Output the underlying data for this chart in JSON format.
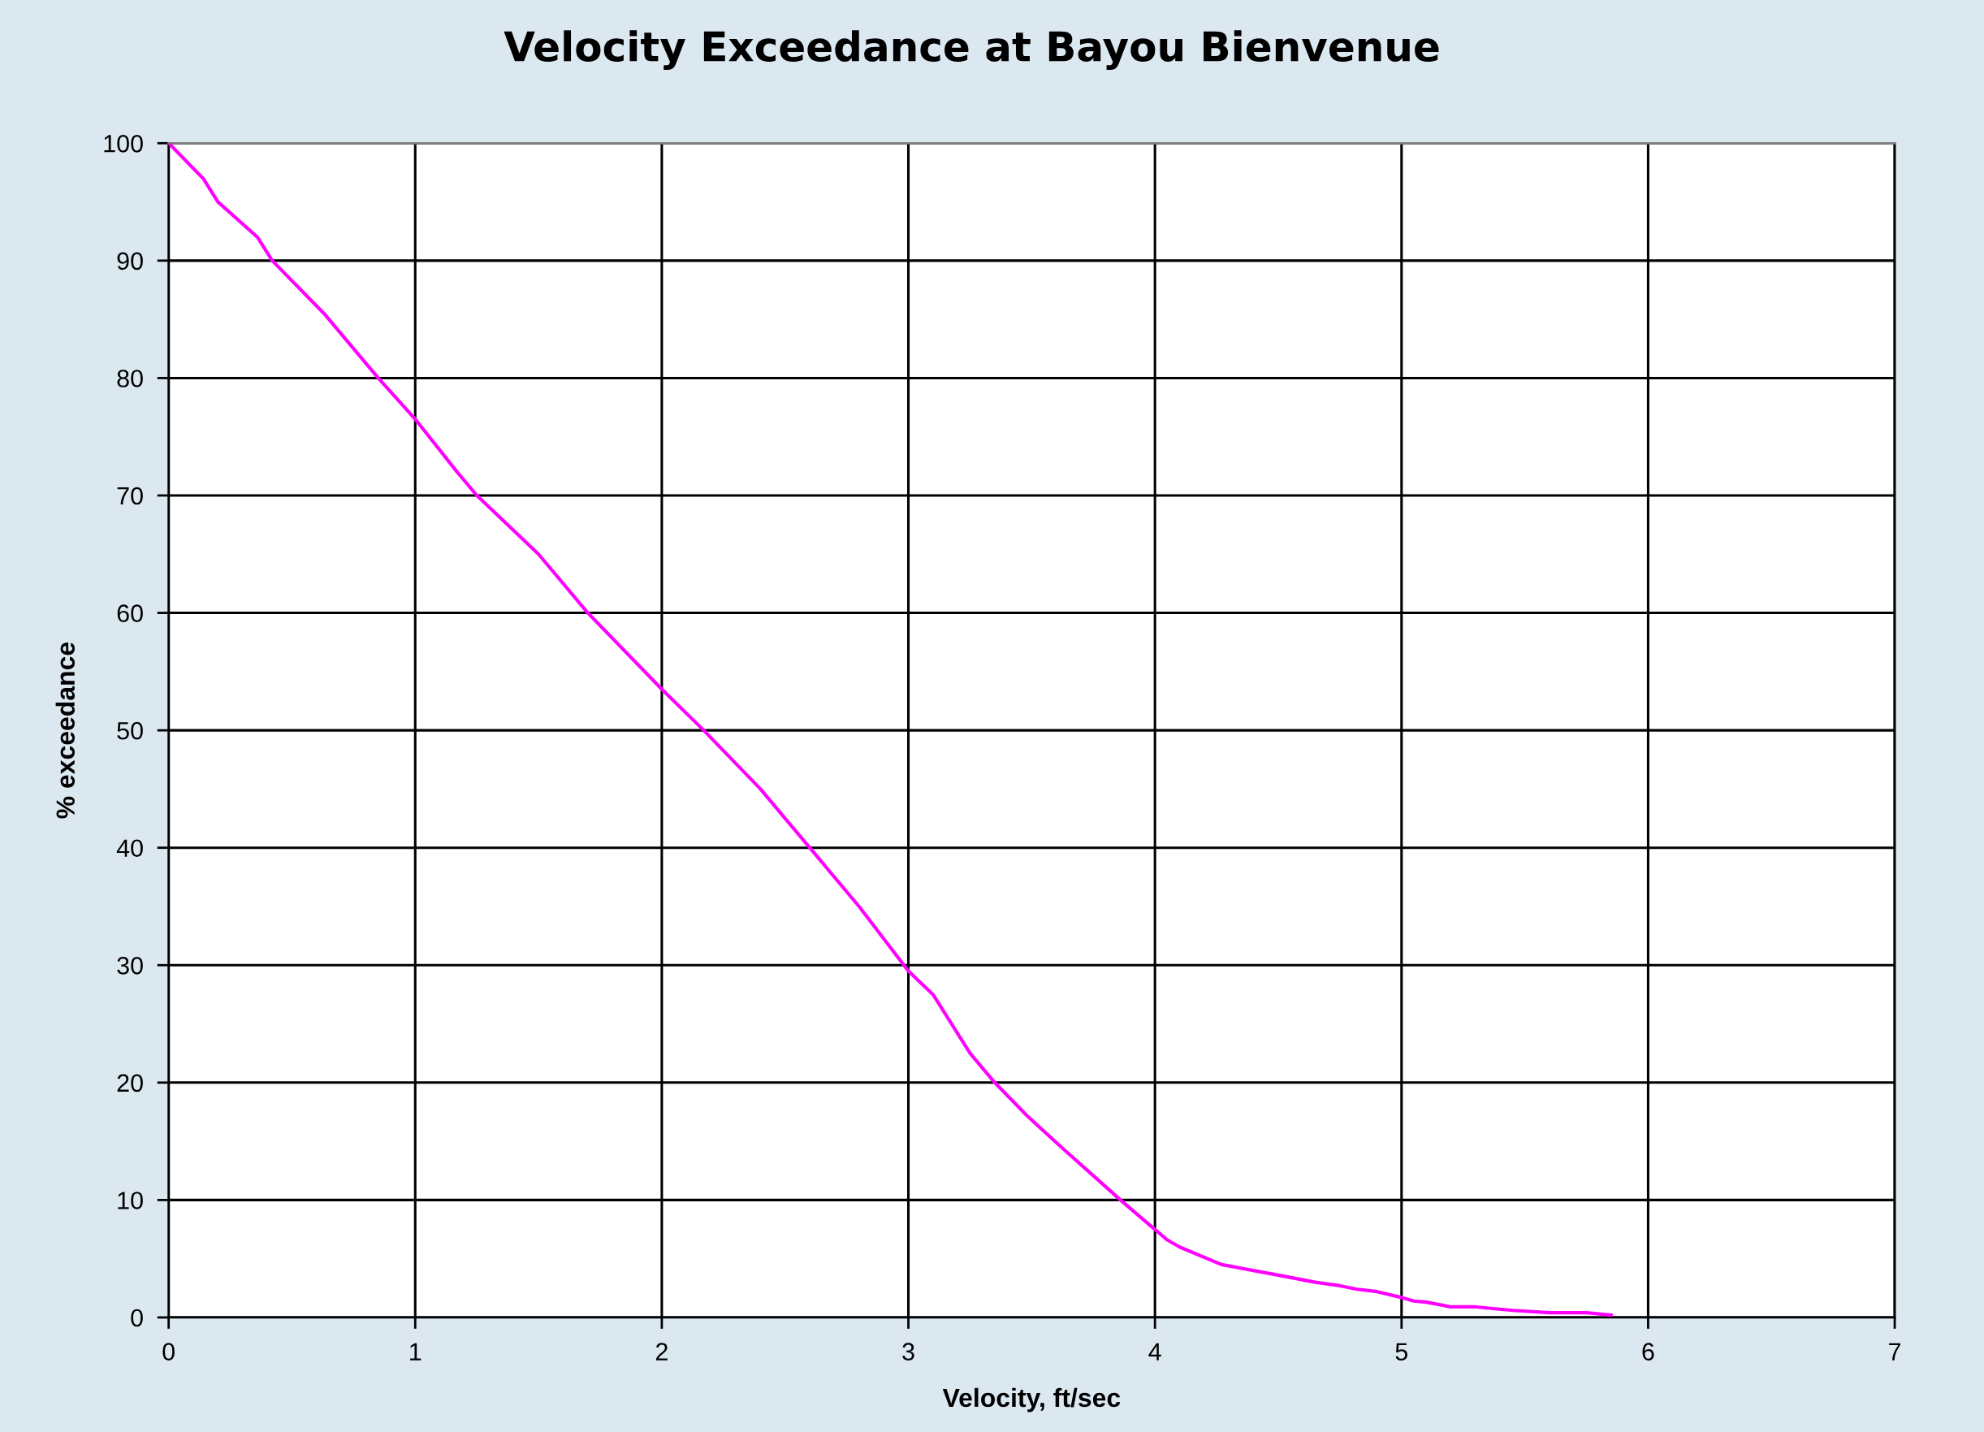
{
  "chart_data": {
    "type": "line",
    "title": "Velocity Exceedance at Bayou Bienvenue",
    "xlabel": "Velocity, ft/sec",
    "ylabel": "% exceedance",
    "x": [
      0,
      0.14,
      0.2,
      0.36,
      0.42,
      0.63,
      0.85,
      1,
      1.17,
      1.25,
      1.5,
      1.7,
      2,
      2.17,
      2.4,
      2.6,
      2.8,
      3,
      3.1,
      3.25,
      3.35,
      3.48,
      3.62,
      3.77,
      3.86,
      3.96,
      4.05,
      4.1,
      4.27,
      4.5,
      4.65,
      4.75,
      4.82,
      4.9,
      5,
      5.05,
      5.1,
      5.2,
      5.3,
      5.45,
      5.6,
      5.75,
      5.85
    ],
    "series": [
      {
        "color": "#ff00ff",
        "values": [
          100,
          97,
          95,
          92,
          90,
          85.5,
          80,
          76.5,
          72,
          70,
          65,
          60,
          53.5,
          50,
          45,
          40,
          35,
          29.5,
          27.5,
          22.5,
          20,
          17.2,
          14.5,
          11.7,
          10,
          8.2,
          6.6,
          6,
          4.5,
          3.6,
          3,
          2.7,
          2.4,
          2.2,
          1.7,
          1.4,
          1.3,
          0.9,
          0.9,
          0.6,
          0.4,
          0.4,
          0.2
        ]
      }
    ],
    "xlim": [
      0,
      7
    ],
    "xticks": [
      0,
      1,
      2,
      3,
      4,
      5,
      6,
      7
    ],
    "ylim": [
      0,
      100
    ],
    "yticks": [
      0,
      10,
      20,
      30,
      40,
      50,
      60,
      70,
      80,
      90,
      100
    ],
    "grid": true,
    "legend": false,
    "marker": "none",
    "line_style": "solid"
  }
}
